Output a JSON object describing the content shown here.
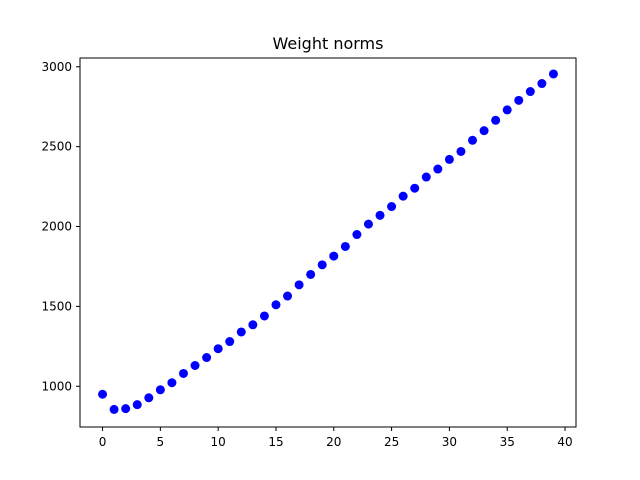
{
  "chart_data": {
    "type": "scatter",
    "title": "Weight norms",
    "xlabel": "",
    "ylabel": "",
    "xlim": [
      -1.95,
      40.95
    ],
    "ylim": [
      745,
      3055
    ],
    "x_ticks": [
      0,
      5,
      10,
      15,
      20,
      25,
      30,
      35,
      40
    ],
    "y_ticks": [
      1000,
      1500,
      2000,
      2500,
      3000
    ],
    "grid": false,
    "legend": "none",
    "series": [
      {
        "color": "#0000ff",
        "marker": "circle",
        "x": [
          0,
          1,
          2,
          3,
          4,
          5,
          6,
          7,
          8,
          9,
          10,
          11,
          12,
          13,
          14,
          15,
          16,
          17,
          18,
          19,
          20,
          21,
          22,
          23,
          24,
          25,
          26,
          27,
          28,
          29,
          30,
          31,
          32,
          33,
          34,
          35,
          36,
          37,
          38,
          39
        ],
        "y": [
          950,
          855,
          860,
          885,
          928,
          978,
          1022,
          1080,
          1130,
          1180,
          1235,
          1280,
          1340,
          1385,
          1440,
          1510,
          1565,
          1635,
          1700,
          1760,
          1815,
          1875,
          1950,
          2015,
          2070,
          2125,
          2190,
          2240,
          2310,
          2360,
          2420,
          2470,
          2540,
          2600,
          2665,
          2730,
          2790,
          2845,
          2895,
          2955
        ]
      }
    ]
  }
}
